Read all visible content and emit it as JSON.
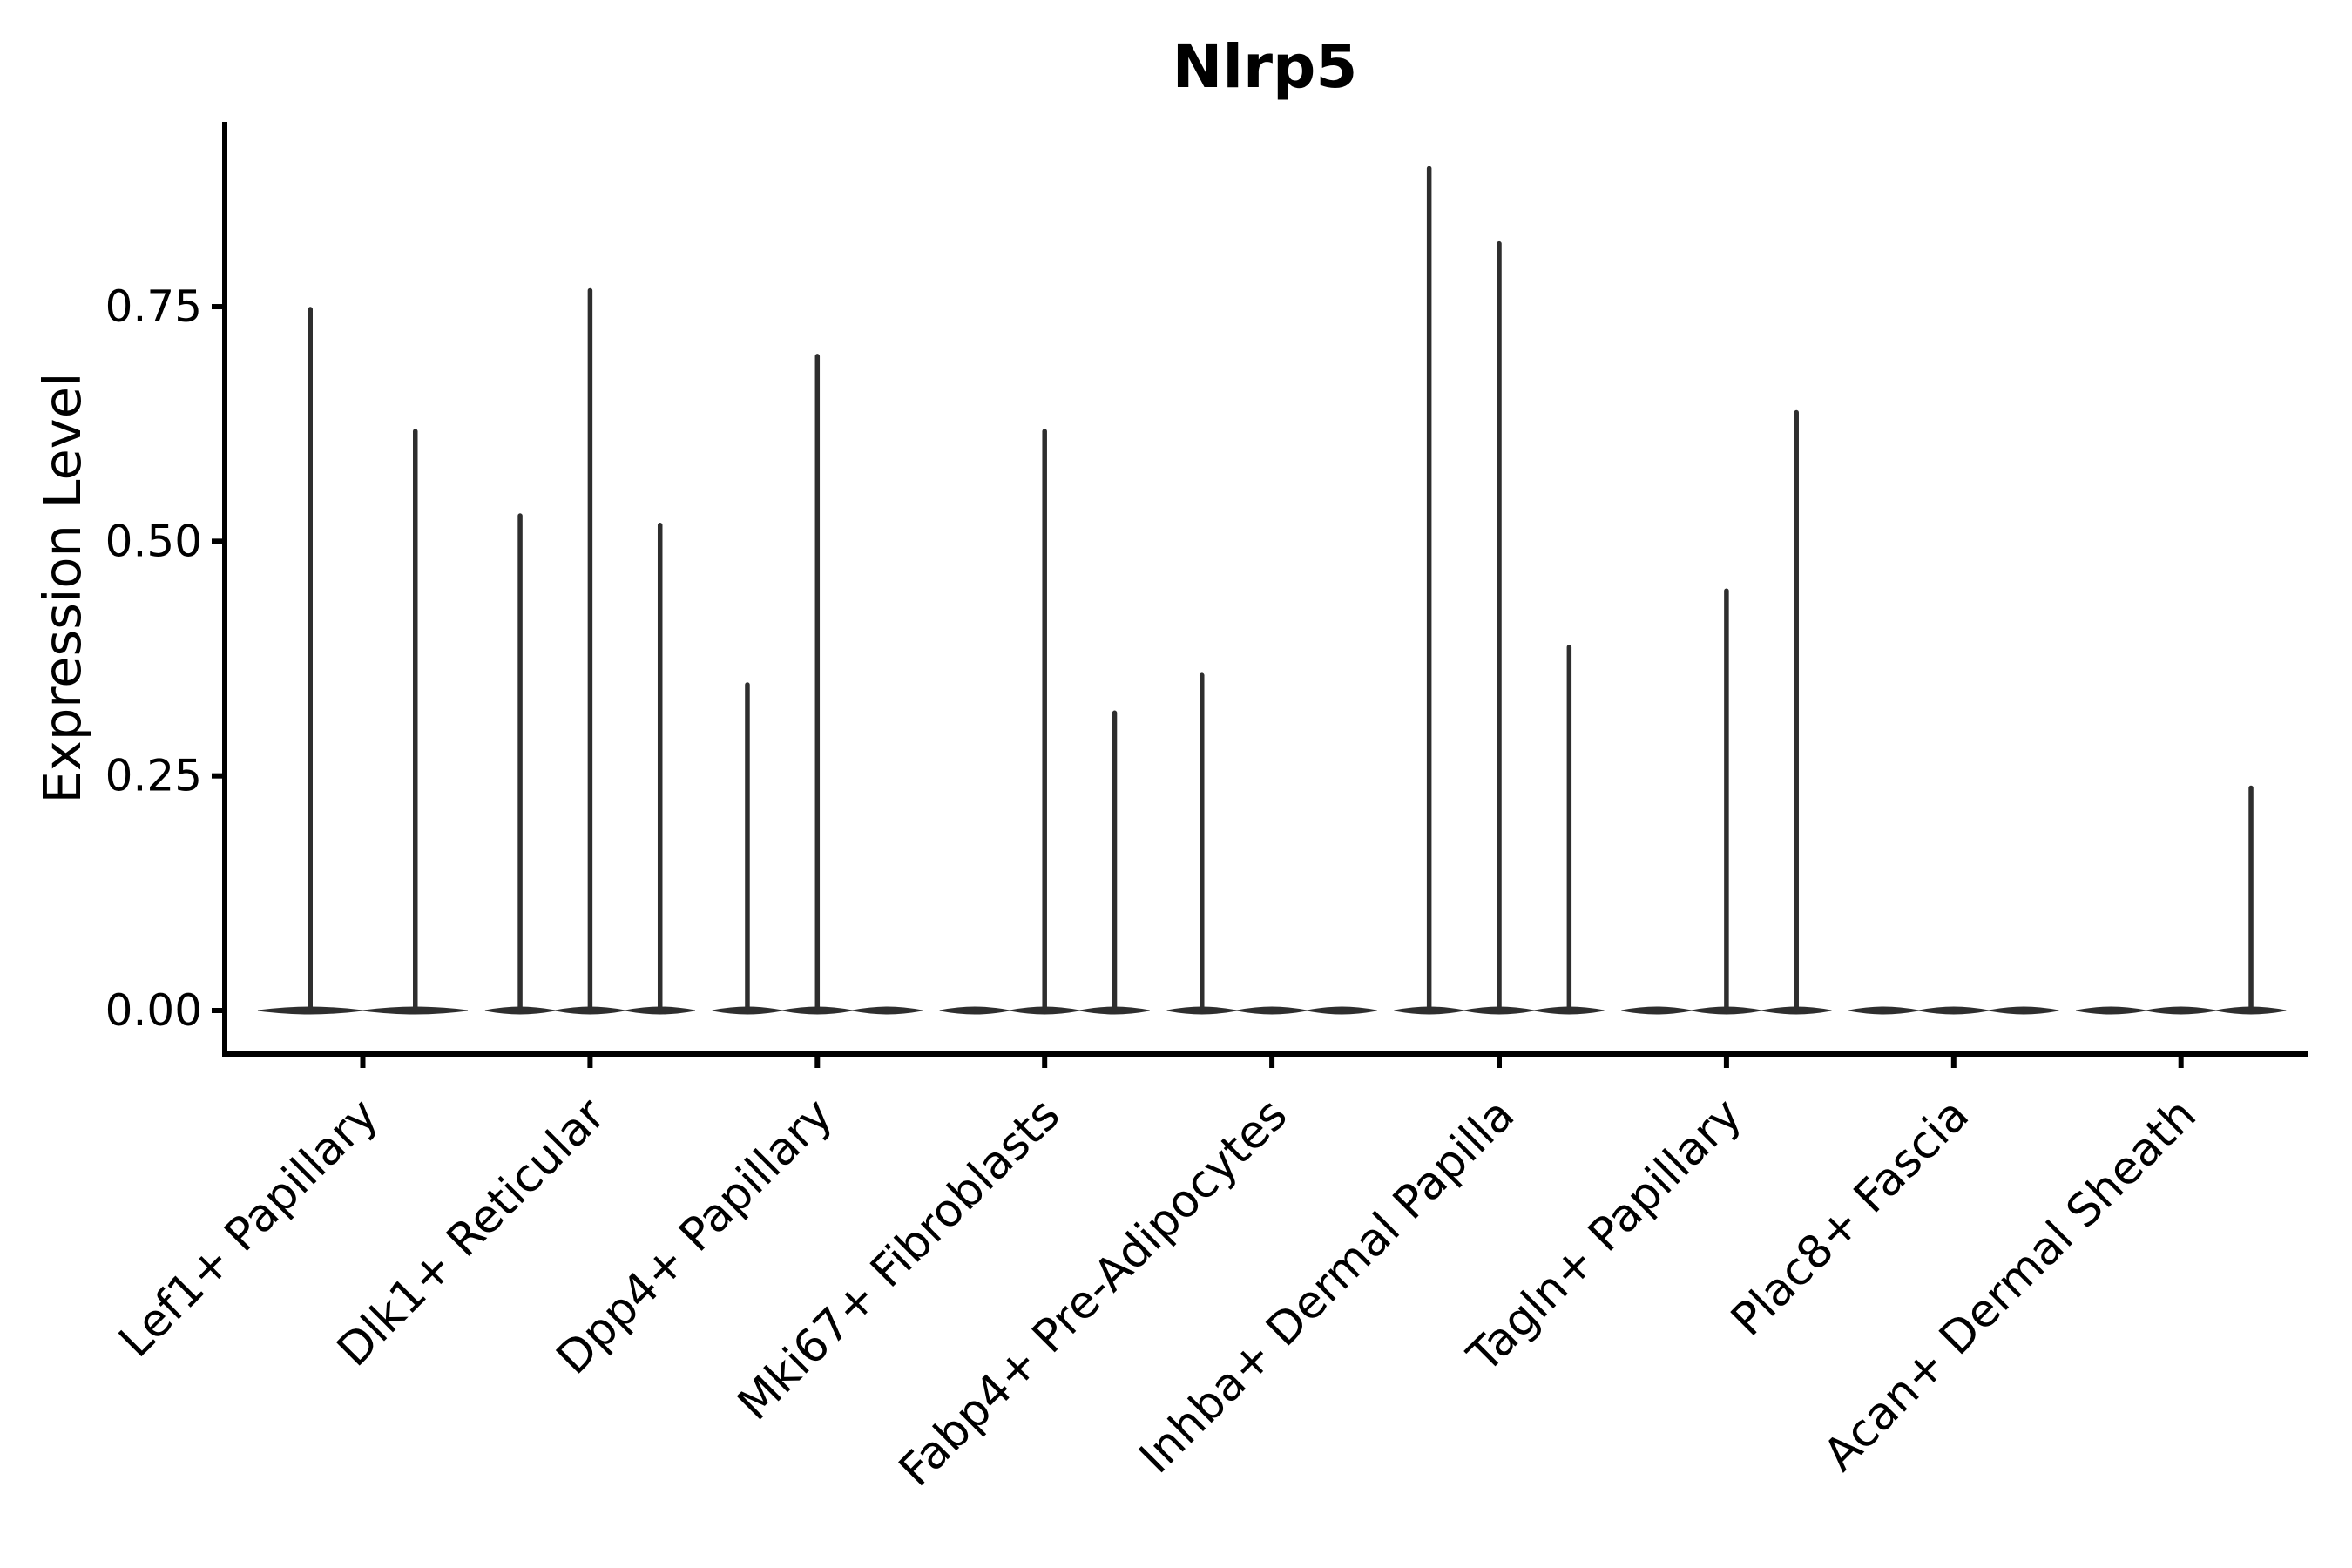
{
  "chart_data": {
    "type": "violin",
    "title": "Nlrp5",
    "xlabel": "",
    "ylabel": "Expression Level",
    "ylim": [
      -0.05,
      0.945
    ],
    "yticks": [
      0.0,
      0.25,
      0.5,
      0.75
    ],
    "ytick_labels": [
      "0.00",
      "0.25",
      "0.50",
      "0.75"
    ],
    "grid": false,
    "legend": "none",
    "x_tick_angle_deg": 45,
    "description": "Each category holds 2-3 dodged flat violins; most mass at 0 with a thin tail spike rising to the listed max expression value (0 = no spike).",
    "categories": [
      {
        "label": "Lef1+ Papillary",
        "violin_max_values": [
          0.75,
          0.62
        ]
      },
      {
        "label": "Dlk1+ Reticular",
        "violin_max_values": [
          0.53,
          0.77,
          0.52
        ]
      },
      {
        "label": "Dpp4+ Papillary",
        "violin_max_values": [
          0.35,
          0.7,
          0
        ]
      },
      {
        "label": "Mki67+ Fibroblasts",
        "violin_max_values": [
          0,
          0.62,
          0.32
        ]
      },
      {
        "label": "Fabp4+ Pre-Adipocytes",
        "violin_max_values": [
          0.36,
          0,
          0
        ]
      },
      {
        "label": "Inhba+ Dermal Papilla",
        "violin_max_values": [
          0.9,
          0.82,
          0.39
        ]
      },
      {
        "label": "Tagln+ Papillary",
        "violin_max_values": [
          0,
          0.45,
          0.64
        ]
      },
      {
        "label": "Plac8+ Fascia",
        "violin_max_values": [
          0,
          0,
          0
        ]
      },
      {
        "label": "Acan+ Dermal Sheath",
        "violin_max_values": [
          0,
          0,
          0.24
        ]
      }
    ],
    "colors": {
      "background": "#ffffff",
      "axis": "#000000",
      "text": "#000000",
      "violin": "#2e2e2e"
    }
  }
}
